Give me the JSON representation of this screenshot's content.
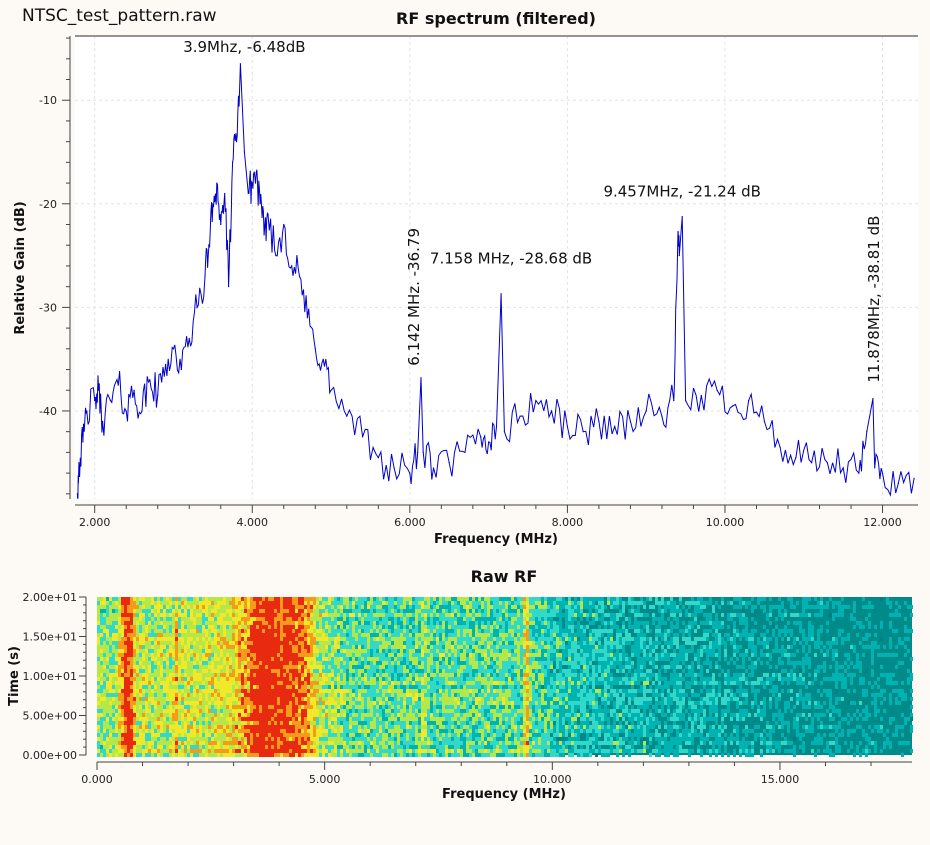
{
  "window": {
    "file_name": "NTSC_test_pattern.raw"
  },
  "chart_data": [
    {
      "type": "line",
      "title": "RF spectrum (filtered)",
      "xlabel": "Frequency (MHz)",
      "ylabel": "Relative Gain (dB)",
      "xlim": [
        1.75,
        12.45
      ],
      "ylim": [
        -48.5,
        -3.8
      ],
      "grid": true,
      "line_color": "#0000cc",
      "x_ticks": [
        2.0,
        4.0,
        6.0,
        8.0,
        10.0,
        12.0
      ],
      "x_tick_labels": [
        "2.000",
        "4.000",
        "6.000",
        "8.000",
        "10.000",
        "12.000"
      ],
      "y_ticks": [
        -10,
        -20,
        -30,
        -40
      ],
      "y_tick_labels": [
        "-10",
        "-20",
        "-30",
        "-40"
      ],
      "series": [
        {
          "name": "spectrum",
          "x": [
            1.78,
            1.8,
            1.85,
            1.9,
            2.0,
            2.05,
            2.1,
            2.2,
            2.3,
            2.4,
            2.5,
            2.6,
            2.7,
            2.8,
            2.9,
            3.0,
            3.1,
            3.2,
            3.3,
            3.4,
            3.45,
            3.5,
            3.55,
            3.6,
            3.65,
            3.7,
            3.75,
            3.8,
            3.85,
            3.9,
            3.95,
            4.0,
            4.05,
            4.1,
            4.15,
            4.2,
            4.3,
            4.4,
            4.5,
            4.6,
            4.7,
            4.8,
            4.9,
            5.0,
            5.2,
            5.4,
            5.6,
            5.8,
            6.0,
            6.1,
            6.142,
            6.17,
            6.3,
            6.5,
            6.7,
            6.9,
            7.0,
            7.1,
            7.158,
            7.2,
            7.4,
            7.6,
            7.8,
            8.0,
            8.2,
            8.4,
            8.6,
            8.8,
            9.0,
            9.2,
            9.35,
            9.4,
            9.42,
            9.457,
            9.5,
            9.7,
            9.9,
            10.1,
            10.3,
            10.5,
            10.7,
            10.9,
            11.1,
            11.3,
            11.5,
            11.7,
            11.8,
            11.878,
            11.9,
            12.0,
            12.2,
            12.4
          ],
          "y": [
            -48.0,
            -45.0,
            -43.0,
            -40.0,
            -39.0,
            -38.0,
            -41.0,
            -39.0,
            -37.5,
            -40.0,
            -38.0,
            -40.0,
            -37.0,
            -38.5,
            -35.5,
            -34.0,
            -36.0,
            -33.0,
            -30.0,
            -27.0,
            -24.0,
            -20.0,
            -18.0,
            -22.0,
            -19.0,
            -28.0,
            -16.0,
            -14.0,
            -6.48,
            -15.0,
            -19.0,
            -18.0,
            -17.0,
            -20.0,
            -23.0,
            -21.0,
            -25.0,
            -22.0,
            -26.0,
            -27.0,
            -31.0,
            -34.0,
            -35.0,
            -38.0,
            -40.5,
            -42.5,
            -44.5,
            -45.5,
            -46.0,
            -44.0,
            -36.79,
            -44.0,
            -45.5,
            -45.0,
            -44.0,
            -42.5,
            -43.0,
            -41.5,
            -28.68,
            -42.0,
            -40.5,
            -39.0,
            -40.0,
            -41.5,
            -42.0,
            -41.0,
            -41.5,
            -41.0,
            -40.0,
            -40.5,
            -39.0,
            -24.0,
            -25.0,
            -21.24,
            -39.0,
            -38.5,
            -38.0,
            -39.5,
            -39.0,
            -41.0,
            -43.5,
            -44.5,
            -45.0,
            -45.0,
            -45.5,
            -46.0,
            -42.0,
            -38.81,
            -45.5,
            -46.0,
            -47.0,
            -46.5
          ]
        }
      ],
      "annotations": [
        {
          "text": "3.9Mhz, -6.48dB",
          "x": 3.9,
          "y": -6.48,
          "orientation": "horizontal"
        },
        {
          "text": "6.142 MHz. -36.79",
          "x": 6.142,
          "y": -36.79,
          "orientation": "vertical"
        },
        {
          "text": "7.158 MHz, -28.68 dB",
          "x": 7.158,
          "y": -28.68,
          "orientation": "horizontal"
        },
        {
          "text": "9.457MHz, -21.24 dB",
          "x": 9.457,
          "y": -21.24,
          "orientation": "horizontal"
        },
        {
          "text": "11.878MHz, -38.81 dB",
          "x": 11.878,
          "y": -38.81,
          "orientation": "vertical"
        }
      ]
    },
    {
      "type": "heatmap",
      "title": "Raw RF",
      "xlabel": "Frequency (MHz)",
      "ylabel": "Time (s)",
      "xlim": [
        0,
        17.9
      ],
      "ylim": [
        0,
        20
      ],
      "x_ticks": [
        0,
        5,
        10,
        15
      ],
      "x_tick_labels": [
        "0.000",
        "5.000",
        "10.000",
        "15.000"
      ],
      "y_ticks": [
        0,
        5,
        10,
        15,
        20
      ],
      "y_tick_labels": [
        "0.00e+00",
        "5.00e+00",
        "1.00e+01",
        "1.50e+01",
        "2.00e+01"
      ],
      "colormap": [
        "#008080",
        "#00b3b3",
        "#33d9c8",
        "#b4e84a",
        "#f2e82a",
        "#f59a1a",
        "#e82a10"
      ],
      "intensity_profile": {
        "freq": [
          0.0,
          0.4,
          0.55,
          0.6,
          0.7,
          0.85,
          1.3,
          1.35,
          1.4,
          1.7,
          1.72,
          1.75,
          2.5,
          3.0,
          3.3,
          3.5,
          3.6,
          3.75,
          3.85,
          4.2,
          4.6,
          4.8,
          5.5,
          7.1,
          7.15,
          7.2,
          9.3,
          9.4,
          9.5,
          10.0,
          12.0,
          15.0,
          17.9
        ],
        "intensity": [
          0.45,
          0.5,
          0.8,
          0.95,
          0.95,
          0.55,
          0.5,
          0.7,
          0.5,
          0.55,
          0.8,
          0.55,
          0.55,
          0.65,
          0.8,
          0.98,
          1.0,
          0.98,
          0.95,
          0.9,
          0.8,
          0.55,
          0.4,
          0.38,
          0.7,
          0.38,
          0.38,
          0.75,
          0.38,
          0.3,
          0.2,
          0.12,
          0.05
        ]
      }
    }
  ]
}
